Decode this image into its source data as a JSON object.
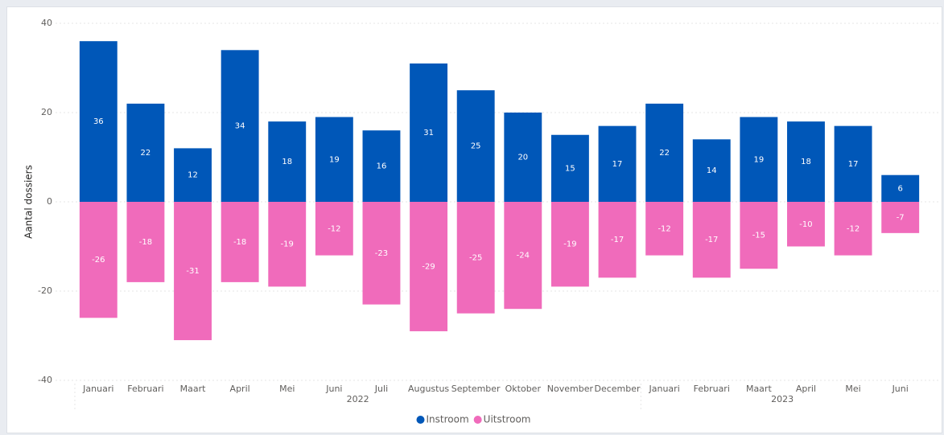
{
  "chart_data": {
    "type": "bar",
    "ylabel": "Aantal dossiers",
    "groups": [
      {
        "name": "2022",
        "categories": [
          "Januari",
          "Februari",
          "Maart",
          "April",
          "Mei",
          "Juni",
          "Juli",
          "Augustus",
          "September",
          "Oktober",
          "November",
          "December"
        ]
      },
      {
        "name": "2023",
        "categories": [
          "Januari",
          "Februari",
          "Maart",
          "April",
          "Mei",
          "Juni"
        ]
      }
    ],
    "series": [
      {
        "name": "Instroom",
        "color": "#0057b8",
        "values": [
          36,
          22,
          12,
          34,
          18,
          19,
          16,
          31,
          25,
          20,
          15,
          17,
          22,
          14,
          19,
          18,
          17,
          6
        ]
      },
      {
        "name": "Uitstroom",
        "color": "#f06bbb",
        "values": [
          -26,
          -18,
          -31,
          -18,
          -19,
          -12,
          -23,
          -29,
          -25,
          -24,
          -19,
          -17,
          -12,
          -17,
          -15,
          -10,
          -12,
          -7
        ]
      }
    ],
    "ylim": [
      -40,
      40
    ],
    "yticks": [
      -40,
      -20,
      0,
      20,
      40
    ],
    "grid": true,
    "legend": "bottom"
  }
}
